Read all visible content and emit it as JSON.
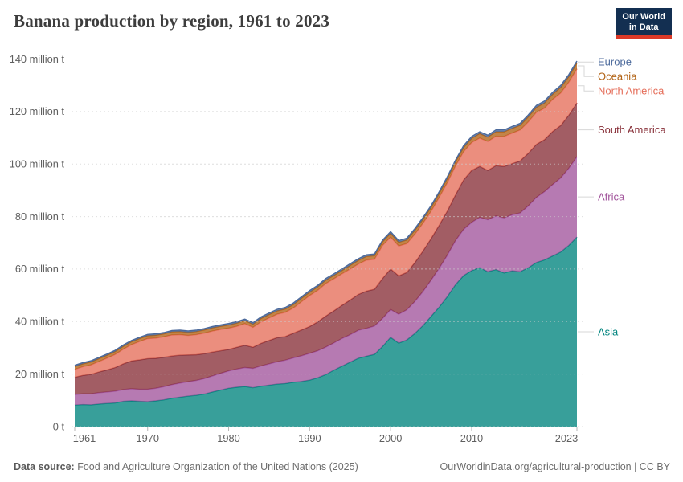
{
  "header": {
    "title": "Banana production by region, 1961 to 2023",
    "logo": {
      "line1": "Our World",
      "line2": "in Data",
      "bg_color": "#132f51",
      "accent_color": "#dc3927"
    }
  },
  "chart_data": {
    "type": "area",
    "stacked": true,
    "title": "Banana production by region, 1961 to 2023",
    "unit": "million t",
    "xlabel": "",
    "ylabel": "",
    "ylim": [
      0,
      140
    ],
    "grid": "dashed-horizontal",
    "legend_position": "right",
    "x_ticks": [
      1961,
      1970,
      1980,
      1990,
      2000,
      2010,
      2023
    ],
    "y_ticks": [
      0,
      20,
      40,
      60,
      80,
      100,
      120,
      140
    ],
    "y_tick_labels": [
      "0 t",
      "20 million t",
      "40 million t",
      "60 million t",
      "80 million t",
      "100 million t",
      "120 million t",
      "140 million t"
    ],
    "years": [
      1961,
      1962,
      1963,
      1964,
      1965,
      1966,
      1967,
      1968,
      1969,
      1970,
      1971,
      1972,
      1973,
      1974,
      1975,
      1976,
      1977,
      1978,
      1979,
      1980,
      1981,
      1982,
      1983,
      1984,
      1985,
      1986,
      1987,
      1988,
      1989,
      1990,
      1991,
      1992,
      1993,
      1994,
      1995,
      1996,
      1997,
      1998,
      1999,
      2000,
      2001,
      2002,
      2003,
      2004,
      2005,
      2006,
      2007,
      2008,
      2009,
      2010,
      2011,
      2012,
      2013,
      2014,
      2015,
      2016,
      2017,
      2018,
      2019,
      2020,
      2021,
      2022,
      2023
    ],
    "series": [
      {
        "name": "Asia",
        "color": "#00847E",
        "values": [
          8.2,
          8.4,
          8.3,
          8.6,
          8.8,
          9.0,
          9.6,
          9.8,
          9.6,
          9.5,
          9.8,
          10.2,
          10.8,
          11.2,
          11.6,
          11.9,
          12.4,
          13.2,
          13.9,
          14.6,
          15.0,
          15.3,
          14.8,
          15.4,
          15.8,
          16.2,
          16.4,
          16.9,
          17.2,
          17.7,
          18.6,
          19.8,
          21.5,
          23.0,
          24.5,
          26.0,
          26.8,
          27.5,
          30.5,
          34.0,
          31.8,
          33.0,
          35.5,
          38.5,
          42.0,
          45.5,
          49.5,
          54.0,
          57.5,
          59.4,
          60.5,
          59.0,
          59.8,
          58.5,
          59.3,
          59.0,
          60.5,
          62.5,
          63.5,
          65.0,
          66.5,
          69.0,
          72.2
        ]
      },
      {
        "name": "Africa",
        "color": "#A2559C",
        "values": [
          4.0,
          4.1,
          4.2,
          4.3,
          4.4,
          4.5,
          4.5,
          4.6,
          4.6,
          4.7,
          4.8,
          5.0,
          5.2,
          5.4,
          5.5,
          5.7,
          5.9,
          6.1,
          6.4,
          6.6,
          6.9,
          7.2,
          7.4,
          7.7,
          8.1,
          8.5,
          8.9,
          9.3,
          9.8,
          10.2,
          10.3,
          10.5,
          10.4,
          10.6,
          10.5,
          10.7,
          10.6,
          10.8,
          10.7,
          10.6,
          11.0,
          11.5,
          12.2,
          13.0,
          13.8,
          14.8,
          15.8,
          16.8,
          17.6,
          18.4,
          19.2,
          19.8,
          20.4,
          21.0,
          21.4,
          22.4,
          23.6,
          24.8,
          26.0,
          27.2,
          28.2,
          29.4,
          30.6
        ]
      },
      {
        "name": "South America",
        "color": "#883039",
        "values": [
          6.6,
          7.0,
          7.4,
          7.9,
          8.4,
          9.0,
          9.8,
          10.6,
          11.2,
          11.7,
          11.4,
          11.2,
          10.9,
          10.6,
          10.2,
          9.8,
          9.5,
          9.1,
          8.6,
          8.2,
          8.3,
          8.5,
          8.0,
          8.6,
          8.9,
          9.2,
          9.0,
          9.4,
          9.8,
          10.2,
          11.0,
          11.8,
          12.2,
          12.6,
          13.2,
          13.6,
          14.2,
          14.0,
          15.2,
          15.4,
          14.6,
          14.2,
          14.8,
          15.4,
          15.8,
          16.4,
          16.8,
          17.4,
          18.8,
          19.8,
          19.4,
          18.8,
          19.2,
          19.6,
          19.5,
          19.8,
          20.0,
          20.2,
          19.8,
          20.2,
          20.0,
          20.2,
          20.5
        ]
      },
      {
        "name": "North America",
        "color": "#E56E5A",
        "values": [
          3.0,
          3.3,
          3.6,
          4.0,
          4.5,
          5.0,
          5.6,
          6.2,
          7.0,
          7.6,
          7.7,
          7.8,
          8.0,
          7.8,
          7.4,
          7.6,
          7.8,
          8.0,
          8.1,
          8.1,
          8.0,
          8.2,
          7.6,
          8.2,
          8.6,
          8.9,
          9.2,
          9.6,
          10.8,
          11.8,
          12.0,
          12.4,
          12.2,
          12.0,
          11.8,
          11.6,
          11.8,
          11.4,
          12.6,
          12.2,
          11.4,
          11.0,
          10.8,
          10.6,
          10.4,
          10.6,
          10.8,
          11.0,
          10.8,
          10.6,
          10.8,
          11.0,
          11.2,
          11.4,
          11.6,
          11.8,
          12.0,
          12.2,
          12.0,
          12.2,
          12.4,
          12.6,
          13.0
        ]
      },
      {
        "name": "Oceania",
        "color": "#B16214",
        "values": [
          1.1,
          1.1,
          1.1,
          1.1,
          1.1,
          1.1,
          1.1,
          1.1,
          1.1,
          1.1,
          1.1,
          1.1,
          1.2,
          1.2,
          1.2,
          1.2,
          1.2,
          1.2,
          1.2,
          1.2,
          1.2,
          1.2,
          1.2,
          1.3,
          1.3,
          1.3,
          1.3,
          1.3,
          1.3,
          1.3,
          1.3,
          1.3,
          1.3,
          1.3,
          1.4,
          1.4,
          1.4,
          1.4,
          1.4,
          1.4,
          1.4,
          1.4,
          1.5,
          1.5,
          1.5,
          1.5,
          1.6,
          1.6,
          1.6,
          1.6,
          1.7,
          1.7,
          1.7,
          1.8,
          1.8,
          1.8,
          1.9,
          1.9,
          2.0,
          2.0,
          2.1,
          2.1,
          2.2
        ]
      },
      {
        "name": "Europe",
        "color": "#4C6A9C",
        "values": [
          0.45,
          0.45,
          0.46,
          0.46,
          0.47,
          0.47,
          0.48,
          0.48,
          0.49,
          0.5,
          0.5,
          0.5,
          0.51,
          0.51,
          0.52,
          0.52,
          0.53,
          0.53,
          0.54,
          0.55,
          0.55,
          0.55,
          0.56,
          0.56,
          0.57,
          0.57,
          0.58,
          0.58,
          0.59,
          0.6,
          0.6,
          0.6,
          0.61,
          0.61,
          0.62,
          0.62,
          0.63,
          0.63,
          0.64,
          0.65,
          0.65,
          0.65,
          0.66,
          0.66,
          0.67,
          0.67,
          0.68,
          0.68,
          0.69,
          0.7,
          0.7,
          0.7,
          0.71,
          0.71,
          0.72,
          0.72,
          0.73,
          0.73,
          0.74,
          0.74,
          0.75,
          0.75,
          0.75
        ]
      }
    ]
  },
  "footer": {
    "datasource_label": "Data source:",
    "datasource_text": "Food and Agriculture Organization of the United Nations (2025)",
    "link_text": "OurWorldinData.org/agricultural-production | CC BY"
  }
}
